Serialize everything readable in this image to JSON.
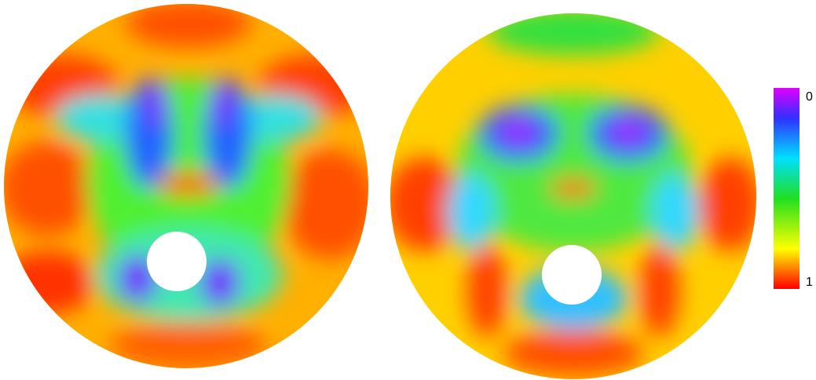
{
  "colorbar": {
    "top_label": "0",
    "bottom_label": "1"
  }
}
